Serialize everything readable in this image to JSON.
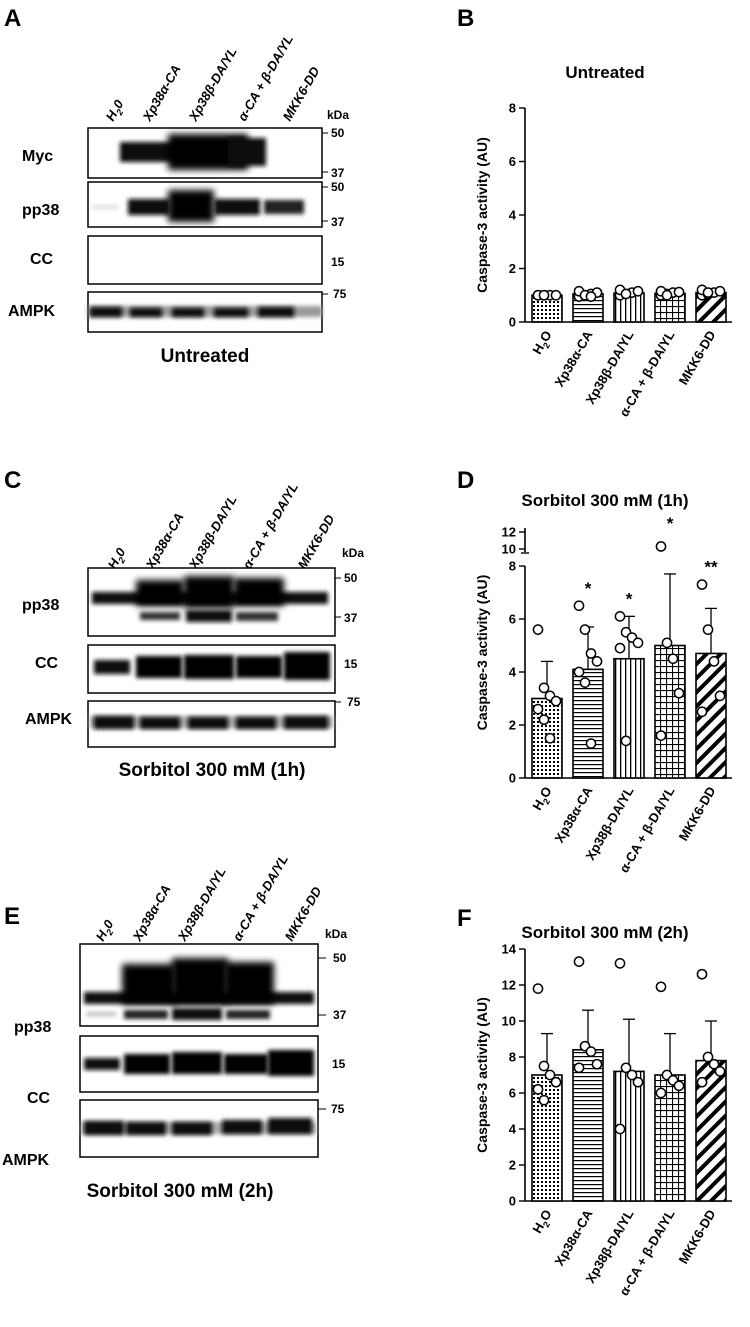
{
  "figure": {
    "panel_labels": [
      "A",
      "B",
      "C",
      "D",
      "E",
      "F"
    ]
  },
  "blots": [
    {
      "label": "A",
      "lanes": [
        "H",
        "2",
        "0",
        "Xp38α-CA",
        "Xp38β-DA/YL",
        "α-CA + β-DA/YL",
        "MKK6-DD"
      ],
      "kda_label": "kDa",
      "rows": [
        {
          "name": "Myc",
          "markers": [
            "50",
            "37"
          ]
        },
        {
          "name": "pp38",
          "markers": [
            "50",
            "37"
          ]
        },
        {
          "name": "CC",
          "markers": [
            "15"
          ]
        },
        {
          "name": "AMPK",
          "markers": [
            "75"
          ]
        }
      ],
      "caption": "Untreated"
    },
    {
      "label": "C",
      "lanes": [
        "H",
        "2",
        "0",
        "Xp38α-CA",
        "Xp38β-DA/YL",
        "α-CA + β-DA/YL",
        "MKK6-DD"
      ],
      "kda_label": "kDa",
      "rows": [
        {
          "name": "pp38",
          "markers": [
            "50",
            "37"
          ]
        },
        {
          "name": "CC",
          "markers": [
            "15"
          ]
        },
        {
          "name": "AMPK",
          "markers": [
            "75"
          ]
        }
      ],
      "caption": "Sorbitol 300 mM (1h)"
    },
    {
      "label": "E",
      "lanes": [
        "H",
        "2",
        "0",
        "Xp38α-CA",
        "Xp38β-DA/YL",
        "α-CA + β-DA/YL",
        "MKK6-DD"
      ],
      "kda_label": "kDa",
      "rows": [
        {
          "name": "pp38",
          "markers": [
            "50",
            "37"
          ]
        },
        {
          "name": "CC",
          "markers": [
            "15"
          ]
        },
        {
          "name": "AMPK",
          "markers": [
            "75"
          ]
        }
      ],
      "caption": "Sorbitol 300 mM (2h)"
    }
  ],
  "chart_data": [
    {
      "panel": "B",
      "type": "bar",
      "title": "Untreated",
      "ylabel": "Caspase-3 activity (AU)",
      "ylim": [
        0,
        8
      ],
      "yticks": [
        0,
        2,
        4,
        6,
        8
      ],
      "categories": [
        "H2O",
        "Xp38α-CA",
        "Xp38β-DA/YL",
        "α-CA + β-DA/YL",
        "MKK6-DD"
      ],
      "category_labels": [
        {
          "main": "H",
          "sub": "2",
          "tail": "O"
        },
        {
          "main": "Xp38α-CA"
        },
        {
          "main": "Xp38β-DA/YL"
        },
        {
          "main": "α-CA + β-DA/YL"
        },
        {
          "main": "MKK6-DD"
        }
      ],
      "values": [
        1.0,
        1.05,
        1.08,
        1.07,
        1.1
      ],
      "errors": [
        0.02,
        0.1,
        0.1,
        0.08,
        0.1
      ],
      "points": [
        [
          1.0,
          1.0,
          1.0,
          1.0,
          1.0,
          1.0
        ],
        [
          0.95,
          1.0,
          1.05,
          1.1,
          1.15,
          1.0,
          0.95
        ],
        [
          1.0,
          1.05,
          1.1,
          1.15,
          1.2,
          1.05
        ],
        [
          1.0,
          1.05,
          1.1,
          1.12,
          1.15,
          1.0
        ],
        [
          1.0,
          1.05,
          1.1,
          1.15,
          1.2,
          1.1
        ]
      ],
      "significance": [
        "",
        "",
        "",
        "",
        ""
      ]
    },
    {
      "panel": "D",
      "type": "bar",
      "title": "Sorbitol 300 mM  (1h)",
      "ylabel": "Caspase-3 activity (AU)",
      "ylim": [
        0,
        8
      ],
      "yticks": [
        0,
        2,
        4,
        6,
        8
      ],
      "upper_ticks": [
        10,
        12
      ],
      "axis_break": true,
      "categories": [
        "H2O",
        "Xp38α-CA",
        "Xp38β-DA/YL",
        "α-CA + β-DA/YL",
        "MKK6-DD"
      ],
      "category_labels": [
        {
          "main": "H",
          "sub": "2",
          "tail": "O"
        },
        {
          "main": "Xp38α-CA"
        },
        {
          "main": "Xp38β-DA/YL"
        },
        {
          "main": "α-CA + β-DA/YL"
        },
        {
          "main": "MKK6-DD"
        }
      ],
      "values": [
        3.0,
        4.1,
        4.5,
        5.0,
        4.7
      ],
      "errors": [
        1.4,
        1.6,
        1.6,
        2.7,
        1.7
      ],
      "points": [
        [
          5.6,
          3.4,
          3.1,
          2.9,
          2.6,
          2.2,
          1.5
        ],
        [
          6.5,
          5.6,
          4.7,
          4.4,
          4.0,
          3.6,
          1.3
        ],
        [
          6.1,
          5.5,
          5.3,
          5.1,
          4.9,
          1.4
        ],
        [
          10.3,
          5.1,
          4.5,
          3.2,
          1.6
        ],
        [
          7.3,
          5.6,
          4.4,
          3.1,
          2.5
        ]
      ],
      "significance": [
        "",
        "*",
        "*",
        "*",
        "**"
      ]
    },
    {
      "panel": "F",
      "type": "bar",
      "title": "Sorbitol 300 mM (2h)",
      "ylabel": "Caspase-3 activity (AU)",
      "ylim": [
        0,
        14
      ],
      "yticks": [
        0,
        2,
        4,
        6,
        8,
        10,
        12,
        14
      ],
      "categories": [
        "H2O",
        "Xp38α-CA",
        "Xp38β-DA/YL",
        "α-CA + β-DA/YL",
        "MKK6-DD"
      ],
      "category_labels": [
        {
          "main": "H",
          "sub": "2",
          "tail": "O"
        },
        {
          "main": "Xp38α-CA"
        },
        {
          "main": "Xp38β-DA/YL"
        },
        {
          "main": "α-CA + β-DA/YL"
        },
        {
          "main": "MKK6-DD"
        }
      ],
      "values": [
        7.0,
        8.4,
        7.2,
        7.0,
        7.8
      ],
      "errors": [
        2.3,
        2.2,
        2.9,
        2.3,
        2.2
      ],
      "points": [
        [
          11.8,
          7.5,
          7.0,
          6.6,
          6.2,
          5.6
        ],
        [
          13.3,
          8.6,
          8.3,
          7.6,
          7.4
        ],
        [
          13.2,
          7.4,
          7.0,
          6.6,
          4.0
        ],
        [
          11.9,
          7.0,
          6.7,
          6.4,
          6.0
        ],
        [
          12.6,
          8.0,
          7.6,
          7.2,
          6.6
        ]
      ],
      "significance": [
        "",
        "",
        "",
        "",
        ""
      ]
    }
  ]
}
